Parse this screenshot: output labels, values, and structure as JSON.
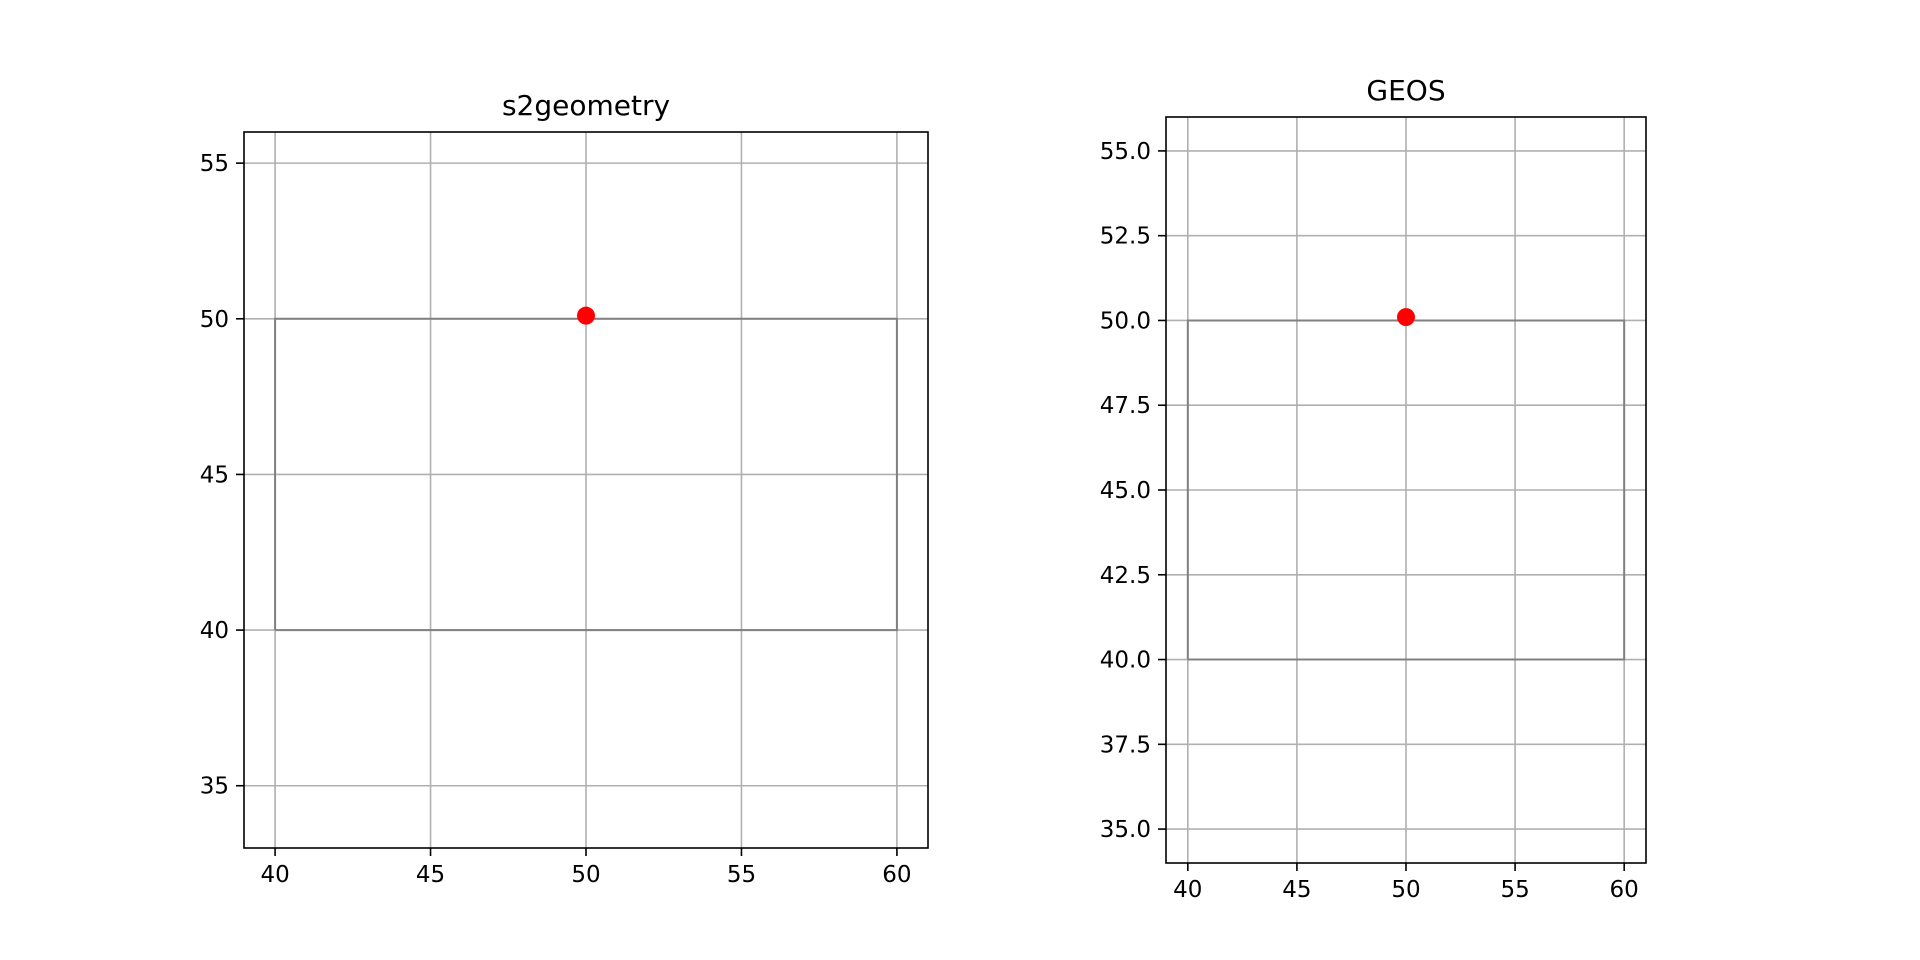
{
  "chart_data": [
    {
      "type": "line",
      "title": "s2geometry",
      "xlabel": "",
      "ylabel": "",
      "xlim": [
        39,
        61
      ],
      "ylim": [
        33,
        56
      ],
      "x_ticks": [
        40,
        45,
        50,
        55,
        60
      ],
      "x_tick_labels": [
        "40",
        "45",
        "50",
        "55",
        "60"
      ],
      "y_ticks": [
        35,
        40,
        45,
        50,
        55
      ],
      "y_tick_labels": [
        "35",
        "40",
        "45",
        "50",
        "55"
      ],
      "grid": true,
      "series": [
        {
          "kind": "polygon-outline",
          "color": "#808080",
          "points": [
            [
              40,
              40
            ],
            [
              60,
              40
            ],
            [
              60,
              50
            ],
            [
              40,
              50
            ],
            [
              40,
              40
            ]
          ]
        },
        {
          "kind": "point",
          "color": "#ff0000",
          "points": [
            [
              50,
              50.1
            ]
          ]
        }
      ]
    },
    {
      "type": "line",
      "title": "GEOS",
      "xlabel": "",
      "ylabel": "",
      "xlim": [
        39,
        61
      ],
      "ylim": [
        34,
        56
      ],
      "x_ticks": [
        40,
        45,
        50,
        55,
        60
      ],
      "x_tick_labels": [
        "40",
        "45",
        "50",
        "55",
        "60"
      ],
      "y_ticks": [
        35,
        37.5,
        40,
        42.5,
        45,
        47.5,
        50,
        52.5,
        55
      ],
      "y_tick_labels": [
        "35.0",
        "37.5",
        "40.0",
        "42.5",
        "45.0",
        "47.5",
        "50.0",
        "52.5",
        "55.0"
      ],
      "grid": true,
      "series": [
        {
          "kind": "polygon-outline",
          "color": "#808080",
          "points": [
            [
              40,
              40
            ],
            [
              60,
              40
            ],
            [
              60,
              50
            ],
            [
              40,
              50
            ],
            [
              40,
              40
            ]
          ]
        },
        {
          "kind": "point",
          "color": "#ff0000",
          "points": [
            [
              50,
              50.1
            ]
          ]
        }
      ]
    }
  ]
}
